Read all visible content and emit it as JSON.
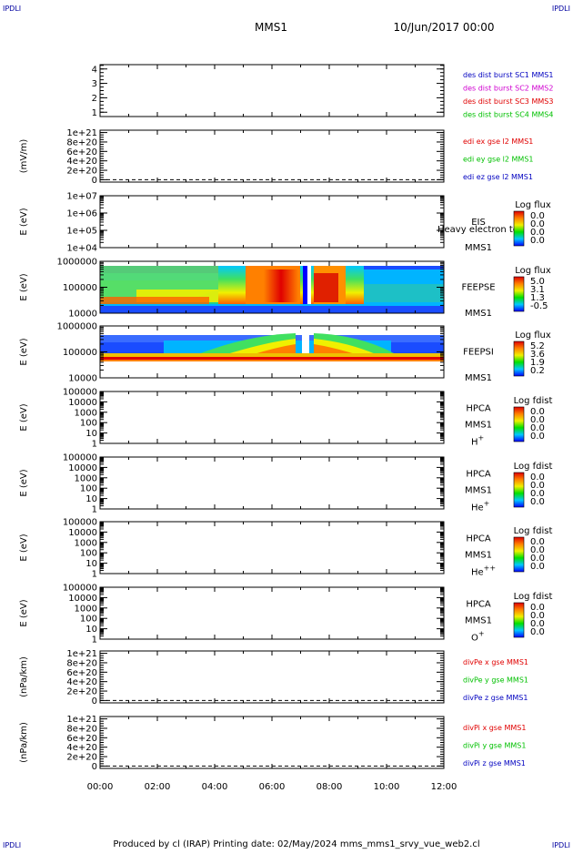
{
  "header": {
    "corner_tl": "IPDLI",
    "corner_tr": "IPDLI",
    "corner_bl": "IPDLI",
    "corner_br": "IPDLI",
    "spacecraft": "MMS1",
    "datetime": "10/Jun/2017 00:00"
  },
  "footer": {
    "text": "Produced by cl (IRAP)   Printing date: 02/May/2024   mms_mms1_srvy_vue_web2.cl"
  },
  "chart_data": {
    "type": "heatmap",
    "xlim": [
      "00:00",
      "12:00"
    ],
    "x_ticks": [
      "00:00",
      "02:00",
      "04:00",
      "06:00",
      "08:00",
      "10:00",
      "12:00"
    ],
    "panels": [
      {
        "id": "burst",
        "type": "line",
        "ylabel": "",
        "yticks": [
          "4",
          "3",
          "2",
          "1"
        ],
        "yvals": [
          4,
          3,
          2,
          1
        ],
        "ylim": [
          0.7,
          4.3
        ],
        "legend": [
          {
            "text": "des dist burst SC1 MMS1",
            "color": "#0000c0"
          },
          {
            "text": "des dist burst SC2 MMS2",
            "color": "#d000d0"
          },
          {
            "text": "des dist burst SC3 MMS3",
            "color": "#e00000"
          },
          {
            "text": "des dist burst SC4 MMS4",
            "color": "#00c000"
          }
        ]
      },
      {
        "id": "edi",
        "type": "line",
        "ylabel": "(mV/m)",
        "yticks": [
          "1e+21",
          "8e+20",
          "6e+20",
          "4e+20",
          "2e+20",
          "0"
        ],
        "yvals": [
          1.0,
          0.8,
          0.6,
          0.4,
          0.2,
          0.0
        ],
        "ylim": [
          -0.05,
          1.05
        ],
        "zero_line": true,
        "legend": [
          {
            "text": "edi ex gse l2 MMS1",
            "color": "#e00000"
          },
          {
            "text": "edi ey gse l2 MMS1",
            "color": "#00c000"
          },
          {
            "text": "edi ez gse l2 MMS1",
            "color": "#0000c0"
          }
        ]
      },
      {
        "id": "eis",
        "type": "heatmap",
        "ylabel": "E (eV)",
        "yticks": [
          "1e+07",
          "1e+06",
          "1e+05",
          "1e+04"
        ],
        "yvals": [
          7,
          6,
          5,
          4
        ],
        "ylim": [
          4,
          7
        ],
        "log_y": true,
        "side_labels": [
          "EIS",
          "MMS1"
        ],
        "overlay_text": "Heavy electron tof",
        "colorbar": {
          "title": "Log flux",
          "values": [
            "0.0",
            "0.0",
            "0.0",
            "0.0"
          ]
        }
      },
      {
        "id": "feeps_e",
        "type": "heatmap",
        "ylabel": "E (eV)",
        "yticks": [
          "1000000",
          "100000",
          "10000"
        ],
        "yvals": [
          6,
          5,
          4
        ],
        "ylim": [
          4,
          6
        ],
        "log_y": true,
        "side_labels": [
          "FEEPSE",
          "MMS1"
        ],
        "colorbar": {
          "title": "Log flux",
          "values": [
            "5.0",
            "3.1",
            "1.3",
            "-0.5"
          ]
        }
      },
      {
        "id": "feeps_i",
        "type": "heatmap",
        "ylabel": "E (eV)",
        "yticks": [
          "1000000",
          "100000",
          "10000"
        ],
        "yvals": [
          6,
          5,
          4
        ],
        "ylim": [
          4,
          6
        ],
        "log_y": true,
        "side_labels": [
          "FEEPSI",
          "MMS1"
        ],
        "colorbar": {
          "title": "Log flux",
          "values": [
            "5.2",
            "3.6",
            "1.9",
            "0.2"
          ]
        }
      },
      {
        "id": "hpca_h",
        "type": "heatmap",
        "ylabel": "E (eV)",
        "yticks": [
          "100000",
          "10000",
          "1000",
          "100",
          "10",
          "1"
        ],
        "yvals": [
          5,
          4,
          3,
          2,
          1,
          0
        ],
        "ylim": [
          0,
          5
        ],
        "log_y": true,
        "side_labels": [
          "HPCA",
          "MMS1"
        ],
        "species": {
          "base": "H",
          "sup": "+"
        },
        "colorbar": {
          "title": "Log fdist",
          "values": [
            "0.0",
            "0.0",
            "0.0",
            "0.0"
          ]
        }
      },
      {
        "id": "hpca_he1",
        "type": "heatmap",
        "ylabel": "E (eV)",
        "yticks": [
          "100000",
          "10000",
          "1000",
          "100",
          "10",
          "1"
        ],
        "yvals": [
          5,
          4,
          3,
          2,
          1,
          0
        ],
        "ylim": [
          0,
          5
        ],
        "log_y": true,
        "side_labels": [
          "HPCA",
          "MMS1"
        ],
        "species": {
          "base": "He",
          "sup": "+"
        },
        "colorbar": {
          "title": "Log fdist",
          "values": [
            "0.0",
            "0.0",
            "0.0",
            "0.0"
          ]
        }
      },
      {
        "id": "hpca_he2",
        "type": "heatmap",
        "ylabel": "E (eV)",
        "yticks": [
          "100000",
          "10000",
          "1000",
          "100",
          "10",
          "1"
        ],
        "yvals": [
          5,
          4,
          3,
          2,
          1,
          0
        ],
        "ylim": [
          0,
          5
        ],
        "log_y": true,
        "side_labels": [
          "HPCA",
          "MMS1"
        ],
        "species": {
          "base": "He",
          "sup": "++"
        },
        "colorbar": {
          "title": "Log fdist",
          "values": [
            "0.0",
            "0.0",
            "0.0",
            "0.0"
          ]
        }
      },
      {
        "id": "hpca_o",
        "type": "heatmap",
        "ylabel": "E (eV)",
        "yticks": [
          "100000",
          "10000",
          "1000",
          "100",
          "10",
          "1"
        ],
        "yvals": [
          5,
          4,
          3,
          2,
          1,
          0
        ],
        "ylim": [
          0,
          5
        ],
        "log_y": true,
        "side_labels": [
          "HPCA",
          "MMS1"
        ],
        "species": {
          "base": "O",
          "sup": "+"
        },
        "colorbar": {
          "title": "Log fdist",
          "values": [
            "0.0",
            "0.0",
            "0.0",
            "0.0"
          ]
        }
      },
      {
        "id": "divpe",
        "type": "line",
        "ylabel": "(nPa/km)",
        "yticks": [
          "1e+21",
          "8e+20",
          "6e+20",
          "4e+20",
          "2e+20",
          "0"
        ],
        "yvals": [
          1.0,
          0.8,
          0.6,
          0.4,
          0.2,
          0.0
        ],
        "ylim": [
          -0.05,
          1.05
        ],
        "zero_line": true,
        "legend": [
          {
            "text": "divPe x gse MMS1",
            "color": "#e00000"
          },
          {
            "text": "divPe y gse MMS1",
            "color": "#00c000"
          },
          {
            "text": "divPe z gse MMS1",
            "color": "#0000c0"
          }
        ]
      },
      {
        "id": "divpi",
        "type": "line",
        "ylabel": "(nPa/km)",
        "yticks": [
          "1e+21",
          "8e+20",
          "6e+20",
          "4e+20",
          "2e+20",
          "0"
        ],
        "yvals": [
          1.0,
          0.8,
          0.6,
          0.4,
          0.2,
          0.0
        ],
        "ylim": [
          -0.05,
          1.05
        ],
        "zero_line": true,
        "legend": [
          {
            "text": "divPi x gse MMS1",
            "color": "#e00000"
          },
          {
            "text": "divPi y gse MMS1",
            "color": "#00c000"
          },
          {
            "text": "divPi z gse MMS1",
            "color": "#0000c0"
          }
        ]
      }
    ]
  }
}
